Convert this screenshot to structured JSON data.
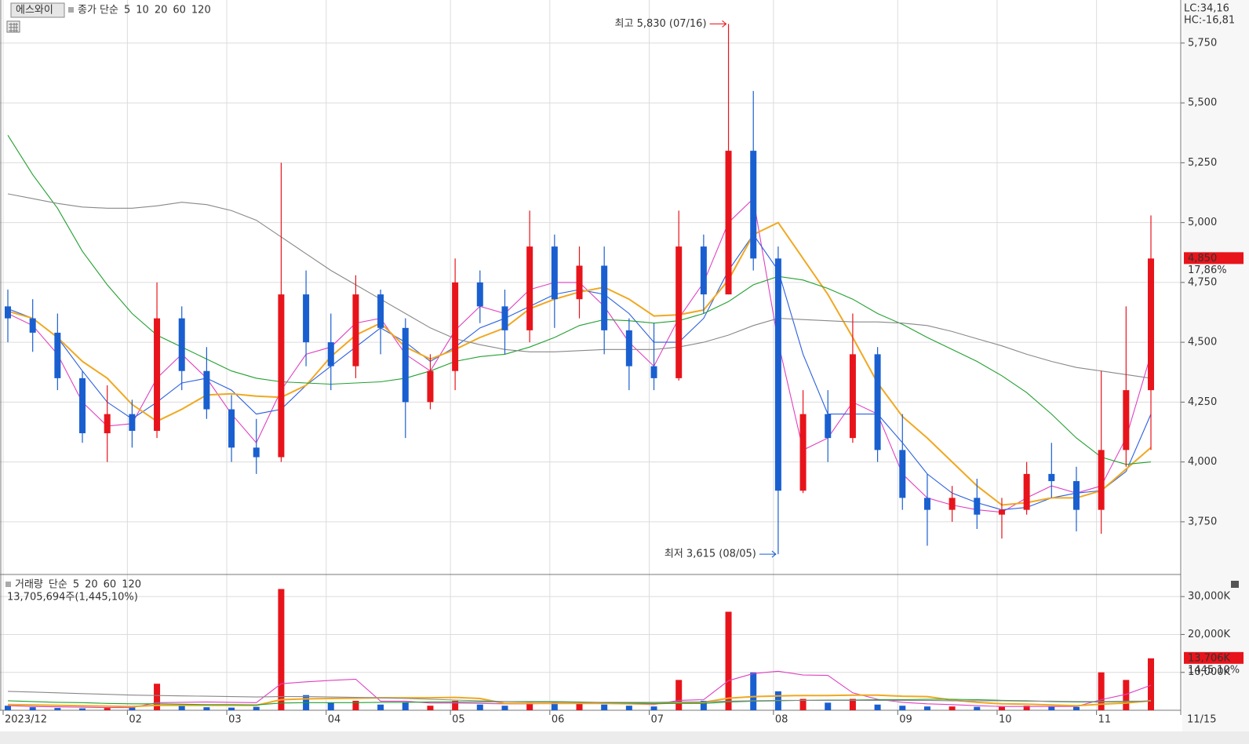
{
  "chart_data": [
    {
      "type": "candlestick",
      "title": "에스와이",
      "legend_title": "종가 단순",
      "legend_title_color": "#e040c0",
      "categories": [
        "2023/12",
        null,
        null,
        null,
        null,
        "02",
        null,
        null,
        null,
        "03",
        null,
        null,
        null,
        "04",
        null,
        null,
        null,
        null,
        "05",
        null,
        null,
        null,
        "06",
        null,
        null,
        null,
        "07",
        null,
        null,
        null,
        null,
        "08",
        null,
        null,
        null,
        null,
        "09",
        null,
        null,
        null,
        "10",
        null,
        null,
        null,
        "11",
        null,
        null
      ],
      "x_end_label": "11/15",
      "open": [
        4650,
        4600,
        4540,
        4350,
        4120,
        4200,
        4130,
        4600,
        4380,
        4220,
        4060,
        4020,
        4700,
        4500,
        4400,
        4700,
        4560,
        4250,
        4380,
        4750,
        4650,
        4550,
        4900,
        4680,
        4820,
        4550,
        4400,
        4350,
        4900,
        4700,
        5300,
        4850,
        3880,
        4200,
        4100,
        4450,
        4050,
        3850,
        3800,
        3850,
        3780,
        3800,
        3950,
        3920,
        3800,
        4050,
        4300
      ],
      "high": [
        4720,
        4680,
        4620,
        4380,
        4320,
        4260,
        4750,
        4650,
        4480,
        4280,
        4180,
        5250,
        4800,
        4620,
        4780,
        4720,
        4600,
        4450,
        4850,
        4800,
        4720,
        5050,
        4950,
        4900,
        4900,
        4600,
        4580,
        5050,
        4950,
        5830,
        5550,
        4900,
        4300,
        4300,
        4620,
        4480,
        4200,
        3950,
        3900,
        3930,
        3850,
        4000,
        4080,
        3980,
        4380,
        4650,
        5030
      ],
      "low": [
        4500,
        4460,
        4300,
        4080,
        4000,
        4060,
        4100,
        4300,
        4180,
        4000,
        3950,
        4000,
        4400,
        4300,
        4350,
        4450,
        4100,
        4220,
        4300,
        4580,
        4450,
        4500,
        4560,
        4600,
        4450,
        4300,
        4300,
        4340,
        4620,
        4700,
        4800,
        3615,
        3870,
        4000,
        4080,
        4000,
        3800,
        3650,
        3750,
        3720,
        3680,
        3780,
        3850,
        3710,
        3700,
        3980,
        4050
      ],
      "close": [
        4600,
        4540,
        4350,
        4120,
        4200,
        4130,
        4600,
        4380,
        4220,
        4060,
        4020,
        4700,
        4500,
        4400,
        4700,
        4560,
        4250,
        4380,
        4750,
        4650,
        4550,
        4900,
        4680,
        4820,
        4550,
        4400,
        4350,
        4900,
        4700,
        5300,
        4850,
        3880,
        4200,
        4100,
        4450,
        4050,
        3850,
        3800,
        3850,
        3780,
        3800,
        3950,
        3920,
        3800,
        4050,
        4300,
        4850
      ],
      "up_color": "#e8141b",
      "down_color": "#1a5fd0",
      "series": [
        {
          "name": "5",
          "color": "#e040c0",
          "values": [
            4620,
            4570,
            4450,
            4250,
            4150,
            4160,
            4350,
            4450,
            4350,
            4200,
            4080,
            4300,
            4450,
            4480,
            4580,
            4600,
            4450,
            4380,
            4550,
            4650,
            4620,
            4720,
            4750,
            4750,
            4650,
            4500,
            4400,
            4600,
            4750,
            5000,
            5100,
            4500,
            4050,
            4100,
            4250,
            4200,
            3950,
            3850,
            3820,
            3800,
            3790,
            3850,
            3900,
            3870,
            3900,
            4100,
            4450
          ]
        },
        {
          "name": "10",
          "color": "#2a5fe0",
          "values": [
            4640,
            4600,
            4520,
            4380,
            4250,
            4180,
            4250,
            4330,
            4350,
            4300,
            4200,
            4220,
            4320,
            4400,
            4480,
            4560,
            4500,
            4420,
            4480,
            4560,
            4600,
            4650,
            4700,
            4720,
            4700,
            4620,
            4500,
            4500,
            4600,
            4800,
            4950,
            4800,
            4450,
            4200,
            4200,
            4200,
            4080,
            3950,
            3870,
            3830,
            3800,
            3810,
            3850,
            3870,
            3880,
            3960,
            4200
          ]
        },
        {
          "name": "20",
          "color": "#f0a820",
          "values": [
            4630,
            4600,
            4520,
            4420,
            4350,
            4240,
            4170,
            4220,
            4280,
            4285,
            4275,
            4270,
            4320,
            4440,
            4530,
            4580,
            4480,
            4430,
            4470,
            4520,
            4560,
            4640,
            4680,
            4710,
            4730,
            4680,
            4610,
            4615,
            4635,
            4760,
            4950,
            5000,
            4850,
            4700,
            4520,
            4330,
            4190,
            4100,
            4000,
            3900,
            3820,
            3830,
            3850,
            3850,
            3880,
            3970,
            4060
          ]
        },
        {
          "name": "60",
          "color": "#22a030",
          "values": [
            5365,
            5200,
            5060,
            4880,
            4740,
            4620,
            4530,
            4480,
            4430,
            4380,
            4350,
            4335,
            4330,
            4325,
            4330,
            4335,
            4350,
            4380,
            4420,
            4440,
            4450,
            4480,
            4520,
            4570,
            4595,
            4590,
            4580,
            4590,
            4620,
            4670,
            4740,
            4775,
            4760,
            4725,
            4680,
            4620,
            4575,
            4520,
            4470,
            4420,
            4360,
            4290,
            4200,
            4100,
            4020,
            3990,
            4000
          ]
        },
        {
          "name": "120",
          "color": "#888888",
          "values": [
            5120,
            5100,
            5080,
            5065,
            5060,
            5060,
            5070,
            5085,
            5075,
            5050,
            5010,
            4940,
            4870,
            4800,
            4740,
            4680,
            4620,
            4560,
            4515,
            4490,
            4470,
            4460,
            4460,
            4465,
            4470,
            4470,
            4470,
            4480,
            4500,
            4530,
            4570,
            4600,
            4595,
            4590,
            4585,
            4585,
            4580,
            4570,
            4545,
            4515,
            4485,
            4450,
            4420,
            4395,
            4380,
            4365,
            4350
          ]
        }
      ],
      "ylim": [
        3530,
        5920
      ],
      "yticks": [
        {
          "value": 3750,
          "label": "3,750"
        },
        {
          "value": 4000,
          "label": "4,000"
        },
        {
          "value": 4250,
          "label": "4,250"
        },
        {
          "value": 4500,
          "label": "4,500"
        },
        {
          "value": 4750,
          "label": "4,750"
        },
        {
          "value": 5000,
          "label": "5,000"
        },
        {
          "value": 5250,
          "label": "5,250"
        },
        {
          "value": 5500,
          "label": "5,500"
        },
        {
          "value": 5750,
          "label": "5,750"
        }
      ],
      "grid": true,
      "high_label": "최고 5,830 (07/16)",
      "low_label": "최저 3,615 (08/05)",
      "price_tag": {
        "value": 4850,
        "label": "4,850",
        "change": "17,86%"
      },
      "indicators": [
        {
          "text": "LC:34,16",
          "color": "#e8141b"
        },
        {
          "text": "HC:-16,81",
          "color": "#1a5fd0"
        }
      ]
    },
    {
      "type": "bar",
      "title": "거래량",
      "title_color": "#20a0a0",
      "legend_title": "단순",
      "legend_title_color": "#e040c0",
      "summary": "13,705,694주(1,445,10%)",
      "values": [
        1200,
        800,
        600,
        500,
        600,
        700,
        7000,
        1500,
        800,
        700,
        900,
        32000,
        4000,
        2000,
        2500,
        1500,
        2000,
        1200,
        2500,
        1500,
        1200,
        2000,
        2200,
        1800,
        1500,
        1200,
        1000,
        8000,
        2500,
        26000,
        10000,
        5000,
        3000,
        2000,
        3000,
        1500,
        1200,
        1000,
        1000,
        900,
        900,
        1200,
        1000,
        900,
        10000,
        8000,
        13706
      ],
      "series": [
        {
          "name": "5",
          "color": "#e040c0",
          "values": [
            1200,
            1000,
            900,
            800,
            700,
            700,
            2000,
            2100,
            2200,
            2100,
            2000,
            7000,
            7500,
            7900,
            8200,
            2400,
            2400,
            1900,
            1900,
            1800,
            1700,
            1700,
            1900,
            1800,
            1800,
            1700,
            1500,
            2600,
            2800,
            7800,
            9700,
            10300,
            9300,
            9200,
            4600,
            2900,
            2100,
            1700,
            1500,
            1200,
            1000,
            1000,
            1000,
            1000,
            2800,
            4200,
            6600
          ]
        },
        {
          "name": "20",
          "color": "#f0a820",
          "values": [
            1500,
            1400,
            1300,
            1200,
            1100,
            1000,
            1300,
            1300,
            1300,
            1300,
            1300,
            2800,
            3000,
            3100,
            3200,
            3300,
            3300,
            3300,
            3400,
            3100,
            1800,
            1800,
            1800,
            1800,
            1800,
            1700,
            1700,
            2000,
            2100,
            3200,
            3600,
            3800,
            3900,
            3900,
            4000,
            4000,
            3700,
            3600,
            2700,
            2100,
            1700,
            1600,
            1400,
            1200,
            1600,
            1900,
            2500
          ]
        },
        {
          "name": "60",
          "color": "#22a030",
          "values": [
            2500,
            2300,
            2100,
            2000,
            1800,
            1700,
            1700,
            1600,
            1500,
            1500,
            1400,
            1900,
            2000,
            2000,
            2000,
            2100,
            2100,
            2200,
            2200,
            2200,
            2300,
            2300,
            2300,
            2200,
            2000,
            1900,
            1800,
            1800,
            1800,
            2200,
            2400,
            2500,
            2600,
            2700,
            2700,
            2800,
            2800,
            2900,
            2900,
            2800,
            2600,
            2500,
            2300,
            2200,
            2200,
            2300,
            2400
          ]
        },
        {
          "name": "120",
          "color": "#888888",
          "values": [
            5000,
            4800,
            4600,
            4400,
            4200,
            4000,
            3900,
            3800,
            3700,
            3600,
            3500,
            3600,
            3600,
            3500,
            3400,
            3300,
            3100,
            2900,
            2700,
            2500,
            2300,
            2200,
            2200,
            2100,
            2100,
            2100,
            2100,
            2200,
            2200,
            2400,
            2500,
            2600,
            2600,
            2600,
            2600,
            2600,
            2600,
            2600,
            2500,
            2500,
            2500,
            2400,
            2400,
            2300,
            2300,
            2400,
            2400
          ]
        }
      ],
      "ylim": [
        0,
        34800
      ],
      "yticks": [
        {
          "value": 10000,
          "label": "10,000K"
        },
        {
          "value": 20000,
          "label": "20,000K"
        },
        {
          "value": 30000,
          "label": "30,000K"
        }
      ],
      "grid": true,
      "volume_tag": {
        "value": 13706,
        "label": "13,706K",
        "change": "1445,10%"
      }
    }
  ]
}
